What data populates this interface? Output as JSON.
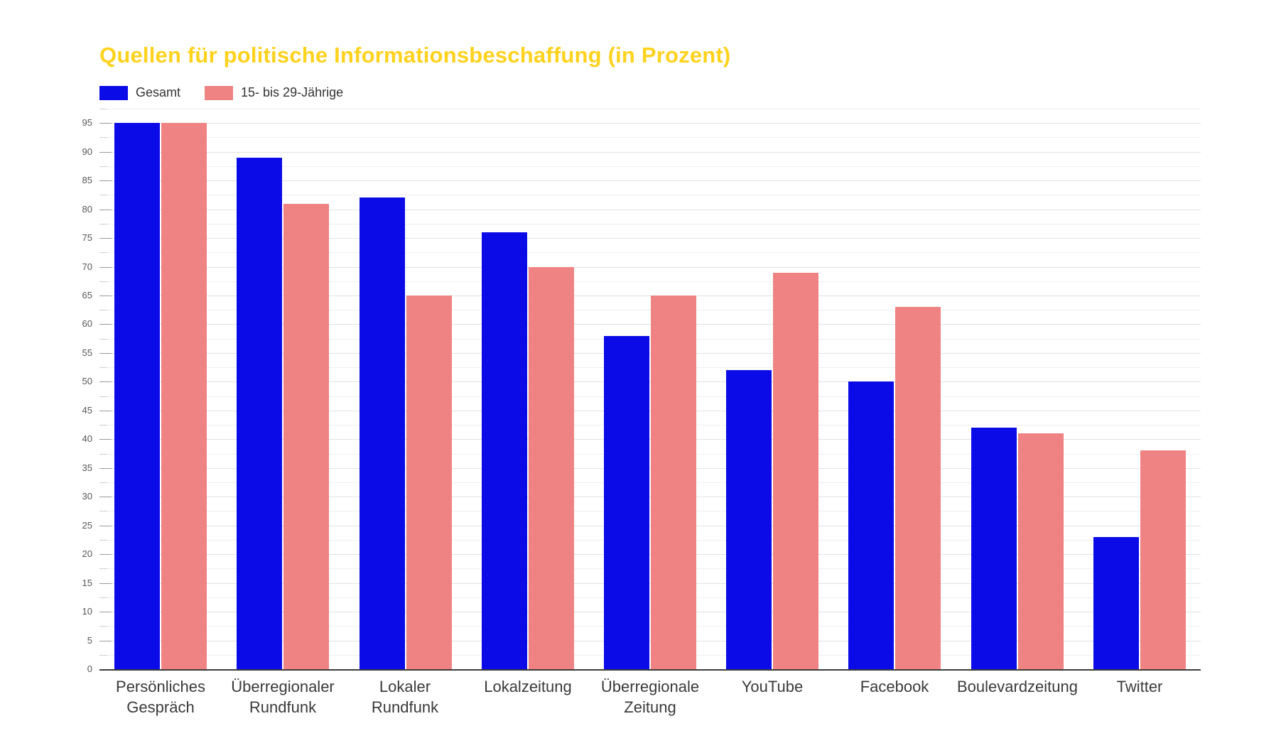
{
  "chart_data": {
    "type": "bar",
    "title": "Quellen für politische Informationsbeschaffung (in Prozent)",
    "title_color": "#ffd21e",
    "categories": [
      "Persönliches Gespräch",
      "Überregionaler Rundfunk",
      "Lokaler Rundfunk",
      "Lokalzeitung",
      "Überregionale Zeitung",
      "YouTube",
      "Facebook",
      "Boulevardzeitung",
      "Twitter"
    ],
    "series": [
      {
        "name": "Gesamt",
        "color": "#0b0be8",
        "values": [
          95,
          89,
          82,
          76,
          58,
          52,
          50,
          42,
          23
        ]
      },
      {
        "name": "15- bis 29-Jährige",
        "color": "#ef8282",
        "values": [
          95,
          81,
          65,
          70,
          65,
          69,
          63,
          41,
          38
        ]
      }
    ],
    "xlabel": "",
    "ylabel": "",
    "ylim": [
      0,
      97.5
    ],
    "yticks": [
      0,
      5,
      10,
      15,
      20,
      25,
      30,
      35,
      40,
      45,
      50,
      55,
      60,
      65,
      70,
      75,
      80,
      85,
      90,
      95
    ],
    "minor_tick_step": 2.5,
    "grid": true,
    "legend_position": "top-left"
  }
}
